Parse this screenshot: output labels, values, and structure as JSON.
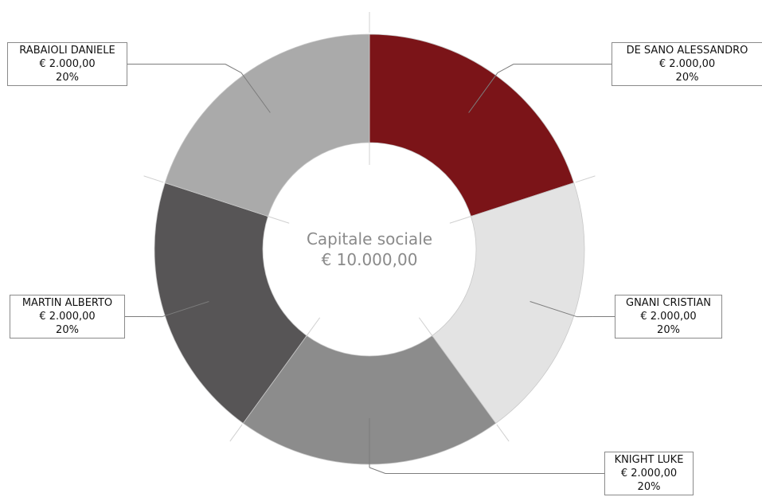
{
  "chart_data": {
    "type": "pie",
    "style": "donut",
    "center_label": "Capitale sociale",
    "center_value": "€ 10.000,00",
    "slices": [
      {
        "name": "DE SANO ALESSANDRO",
        "amount": "€ 2.000,00",
        "percent": "20%",
        "value": 2000,
        "color": "#7b1418"
      },
      {
        "name": "GNANI CRISTIAN",
        "amount": "€ 2.000,00",
        "percent": "20%",
        "value": 2000,
        "color": "#e3e3e3"
      },
      {
        "name": "KNIGHT LUKE",
        "amount": "€ 2.000,00",
        "percent": "20%",
        "value": 2000,
        "color": "#8c8c8c"
      },
      {
        "name": "MARTIN ALBERTO",
        "amount": "€ 2.000,00",
        "percent": "20%",
        "value": 2000,
        "color": "#575556"
      },
      {
        "name": "RABAIOLI DANIELE",
        "amount": "€ 2.000,00",
        "percent": "20%",
        "value": 2000,
        "color": "#aaaaaa"
      }
    ]
  }
}
